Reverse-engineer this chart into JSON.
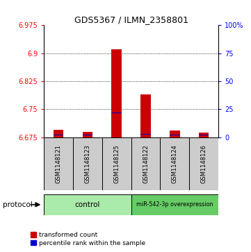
{
  "title": "GDS5367 / ILMN_2358801",
  "samples": [
    "GSM1148121",
    "GSM1148123",
    "GSM1148125",
    "GSM1148122",
    "GSM1148124",
    "GSM1148126"
  ],
  "transformed_counts": [
    6.695,
    6.69,
    6.91,
    6.79,
    6.693,
    6.688
  ],
  "percentile_ranks": [
    6.682,
    6.681,
    6.74,
    6.683,
    6.681,
    6.681
  ],
  "ymin": 6.675,
  "ymax": 6.975,
  "y_ticks_left": [
    6.675,
    6.75,
    6.825,
    6.9,
    6.975
  ],
  "y_ticks_right_labels": [
    "0",
    "25",
    "50",
    "75",
    "100%"
  ],
  "y_ticks_right_values": [
    6.675,
    6.75,
    6.825,
    6.9,
    6.975
  ],
  "bar_color": "#cc0000",
  "percentile_color": "#0000cc",
  "control_color": "#aaeaaa",
  "overexpr_color": "#66cc66",
  "sample_box_color": "#cccccc",
  "legend_red": "transformed count",
  "legend_blue": "percentile rank within the sample",
  "group_label": "protocol"
}
